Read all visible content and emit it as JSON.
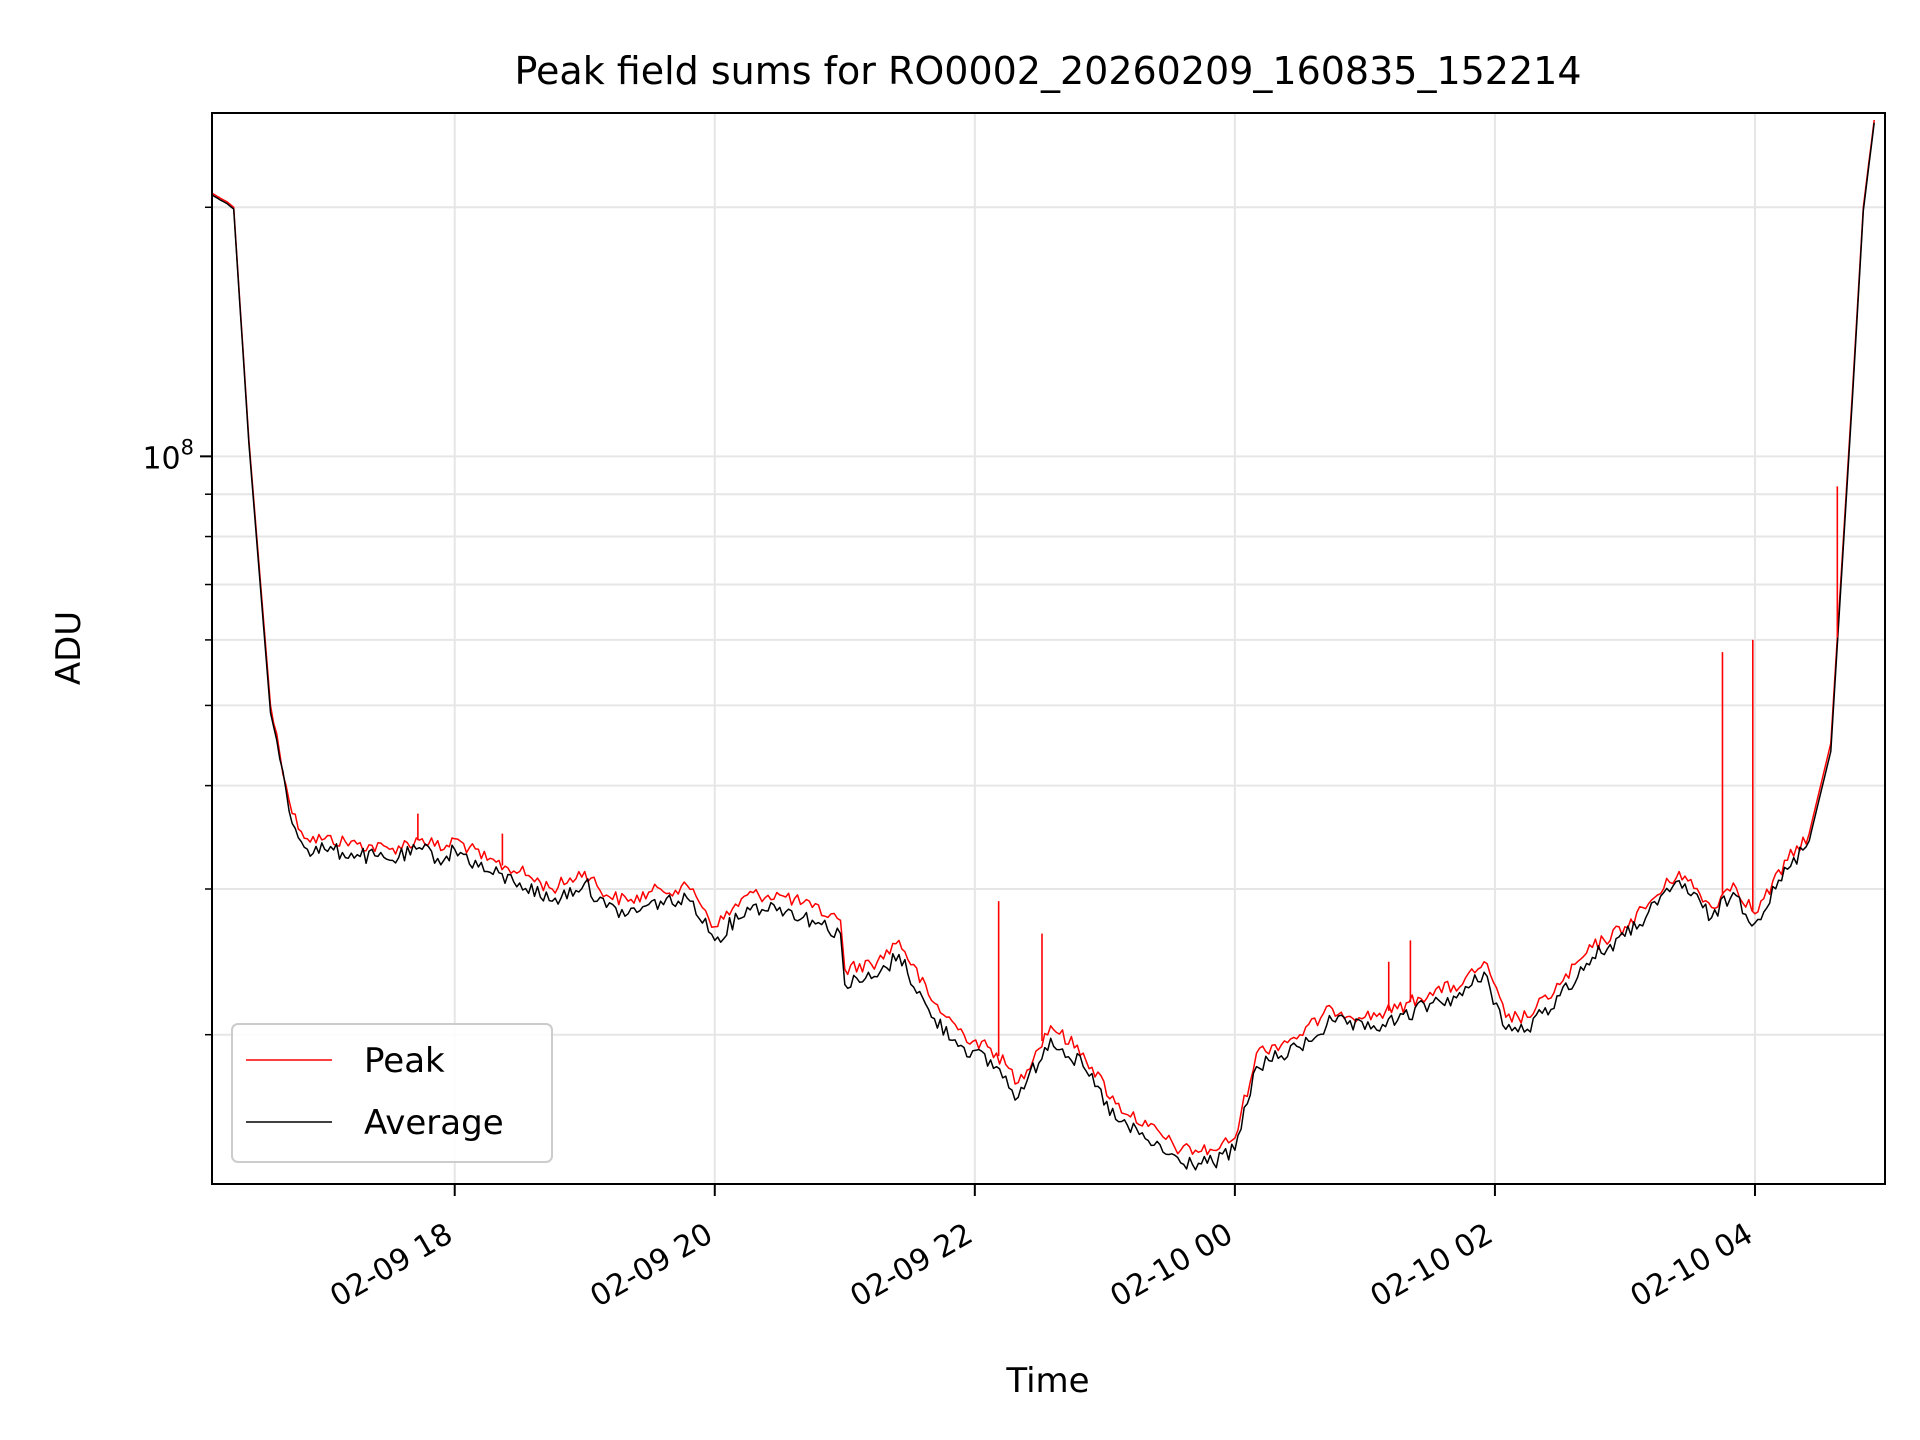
{
  "chart_data": {
    "type": "line",
    "title": "Peak field sums for RO0002_20260209_160835_152214",
    "xlabel": "Time",
    "ylabel": "ADU",
    "yscale": "log",
    "ylim": [
      13200000,
      260000000
    ],
    "xlim": [
      "2026-02-09 16:08",
      "2026-02-10 05:00"
    ],
    "x_ticks": [
      {
        "value": "2026-02-09 18:00",
        "label": "02-09 18"
      },
      {
        "value": "2026-02-09 20:00",
        "label": "02-09 20"
      },
      {
        "value": "2026-02-09 22:00",
        "label": "02-09 22"
      },
      {
        "value": "2026-02-10 00:00",
        "label": "02-10 00"
      },
      {
        "value": "2026-02-10 02:00",
        "label": "02-10 02"
      },
      {
        "value": "2026-02-10 04:00",
        "label": "02-10 04"
      }
    ],
    "y_major_ticks": [
      {
        "value": 100000000,
        "label_base": "10",
        "label_exp": "8"
      }
    ],
    "y_minor_ticks": [
      20000000,
      30000000,
      40000000,
      50000000,
      60000000,
      70000000,
      80000000,
      90000000,
      200000000
    ],
    "grid": true,
    "legend_position": "lower-left",
    "series": [
      {
        "name": "Peak",
        "color": "#ff0000",
        "x": [
          "2026-02-09 16:08",
          "2026-02-09 16:12",
          "2026-02-09 16:15",
          "2026-02-09 16:18",
          "2026-02-09 16:25",
          "2026-02-09 16:35",
          "2026-02-09 16:45",
          "2026-02-09 16:52",
          "2026-02-09 17:00",
          "2026-02-09 17:15",
          "2026-02-09 17:30",
          "2026-02-09 17:45",
          "2026-02-09 17:55",
          "2026-02-09 18:00",
          "2026-02-09 18:15",
          "2026-02-09 18:30",
          "2026-02-09 18:45",
          "2026-02-09 19:00",
          "2026-02-09 19:10",
          "2026-02-09 19:20",
          "2026-02-09 19:35",
          "2026-02-09 19:50",
          "2026-02-09 20:00",
          "2026-02-09 20:15",
          "2026-02-09 20:30",
          "2026-02-09 20:45",
          "2026-02-09 20:58",
          "2026-02-09 21:00",
          "2026-02-09 21:15",
          "2026-02-09 21:25",
          "2026-02-09 21:40",
          "2026-02-09 21:55",
          "2026-02-09 22:10",
          "2026-02-09 22:20",
          "2026-02-09 22:35",
          "2026-02-09 22:50",
          "2026-02-09 23:05",
          "2026-02-09 23:20",
          "2026-02-09 23:35",
          "2026-02-09 23:50",
          "2026-02-10 00:00",
          "2026-02-10 00:10",
          "2026-02-10 00:30",
          "2026-02-10 00:45",
          "2026-02-10 01:00",
          "2026-02-10 01:15",
          "2026-02-10 01:30",
          "2026-02-10 01:45",
          "2026-02-10 01:55",
          "2026-02-10 02:05",
          "2026-02-10 02:15",
          "2026-02-10 02:30",
          "2026-02-10 02:45",
          "2026-02-10 03:00",
          "2026-02-10 03:15",
          "2026-02-10 03:25",
          "2026-02-10 03:40",
          "2026-02-10 03:50",
          "2026-02-10 04:00",
          "2026-02-10 04:15",
          "2026-02-10 04:25",
          "2026-02-10 04:35",
          "2026-02-10 04:45",
          "2026-02-10 04:50",
          "2026-02-10 04:55"
        ],
        "values": [
          208000000,
          205000000,
          203000000,
          200000000,
          105000000,
          50000000,
          37000000,
          34500000,
          34500000,
          34000000,
          33500000,
          34500000,
          33500000,
          34500000,
          32500000,
          31500000,
          30000000,
          31500000,
          29500000,
          29000000,
          30000000,
          30000000,
          27000000,
          29500000,
          29500000,
          28500000,
          27500000,
          24000000,
          24500000,
          26000000,
          22000000,
          20000000,
          19000000,
          17500000,
          20500000,
          19000000,
          16500000,
          15500000,
          14500000,
          14500000,
          15000000,
          19000000,
          20000000,
          21500000,
          21000000,
          21500000,
          22500000,
          23000000,
          24500000,
          21000000,
          21000000,
          23000000,
          25500000,
          27000000,
          29500000,
          31500000,
          28500000,
          30500000,
          28000000,
          32500000,
          35000000,
          45000000,
          120000000,
          200000000,
          255000000
        ]
      },
      {
        "name": "Average",
        "color": "#000000",
        "x": [
          "2026-02-09 16:08",
          "2026-02-09 16:12",
          "2026-02-09 16:15",
          "2026-02-09 16:18",
          "2026-02-09 16:25",
          "2026-02-09 16:35",
          "2026-02-09 16:45",
          "2026-02-09 16:52",
          "2026-02-09 17:00",
          "2026-02-09 17:15",
          "2026-02-09 17:30",
          "2026-02-09 17:45",
          "2026-02-09 17:55",
          "2026-02-09 18:00",
          "2026-02-09 18:15",
          "2026-02-09 18:30",
          "2026-02-09 18:45",
          "2026-02-09 19:00",
          "2026-02-09 19:10",
          "2026-02-09 19:20",
          "2026-02-09 19:35",
          "2026-02-09 19:50",
          "2026-02-09 20:00",
          "2026-02-09 20:15",
          "2026-02-09 20:30",
          "2026-02-09 20:45",
          "2026-02-09 20:58",
          "2026-02-09 21:00",
          "2026-02-09 21:15",
          "2026-02-09 21:25",
          "2026-02-09 21:40",
          "2026-02-09 21:55",
          "2026-02-09 22:10",
          "2026-02-09 22:20",
          "2026-02-09 22:35",
          "2026-02-09 22:50",
          "2026-02-09 23:05",
          "2026-02-09 23:20",
          "2026-02-09 23:35",
          "2026-02-09 23:50",
          "2026-02-10 00:00",
          "2026-02-10 00:10",
          "2026-02-10 00:30",
          "2026-02-10 00:45",
          "2026-02-10 01:00",
          "2026-02-10 01:15",
          "2026-02-10 01:30",
          "2026-02-10 01:45",
          "2026-02-10 01:55",
          "2026-02-10 02:05",
          "2026-02-10 02:15",
          "2026-02-10 02:30",
          "2026-02-10 02:45",
          "2026-02-10 03:00",
          "2026-02-10 03:15",
          "2026-02-10 03:25",
          "2026-02-10 03:40",
          "2026-02-10 03:50",
          "2026-02-10 04:00",
          "2026-02-10 04:15",
          "2026-02-10 04:25",
          "2026-02-10 04:35",
          "2026-02-10 04:45",
          "2026-02-10 04:50",
          "2026-02-10 04:55"
        ],
        "values": [
          207000000,
          204000000,
          202000000,
          199000000,
          104000000,
          49000000,
          36000000,
          33500000,
          33500000,
          33000000,
          32500000,
          33500000,
          32500000,
          33500000,
          31500000,
          30500000,
          29000000,
          30500000,
          28500000,
          28000000,
          29000000,
          29000000,
          26000000,
          28500000,
          28500000,
          27500000,
          26500000,
          23000000,
          23500000,
          25000000,
          21000000,
          19300000,
          18300000,
          16800000,
          19800000,
          18300000,
          15800000,
          14900000,
          14000000,
          14000000,
          14500000,
          18300000,
          19300000,
          20800000,
          20300000,
          20800000,
          21800000,
          22300000,
          23800000,
          20300000,
          20300000,
          22300000,
          24800000,
          26300000,
          28700000,
          30700000,
          27700000,
          29700000,
          27300000,
          31700000,
          34300000,
          44000000,
          118000000,
          198000000,
          253000000
        ]
      }
    ],
    "spikes": [
      {
        "series": "Peak",
        "x": "2026-02-09 17:43",
        "value": 37000000
      },
      {
        "series": "Peak",
        "x": "2026-02-09 18:22",
        "value": 35000000
      },
      {
        "series": "Peak",
        "x": "2026-02-09 22:11",
        "value": 29000000
      },
      {
        "series": "Peak",
        "x": "2026-02-09 22:31",
        "value": 26500000
      },
      {
        "series": "Peak",
        "x": "2026-02-10 01:11",
        "value": 24500000
      },
      {
        "series": "Peak",
        "x": "2026-02-10 01:21",
        "value": 26000000
      },
      {
        "series": "Peak",
        "x": "2026-02-10 03:45",
        "value": 58000000
      },
      {
        "series": "Peak",
        "x": "2026-02-10 03:59",
        "value": 60000000
      },
      {
        "series": "Peak",
        "x": "2026-02-10 04:38",
        "value": 92000000
      }
    ]
  }
}
